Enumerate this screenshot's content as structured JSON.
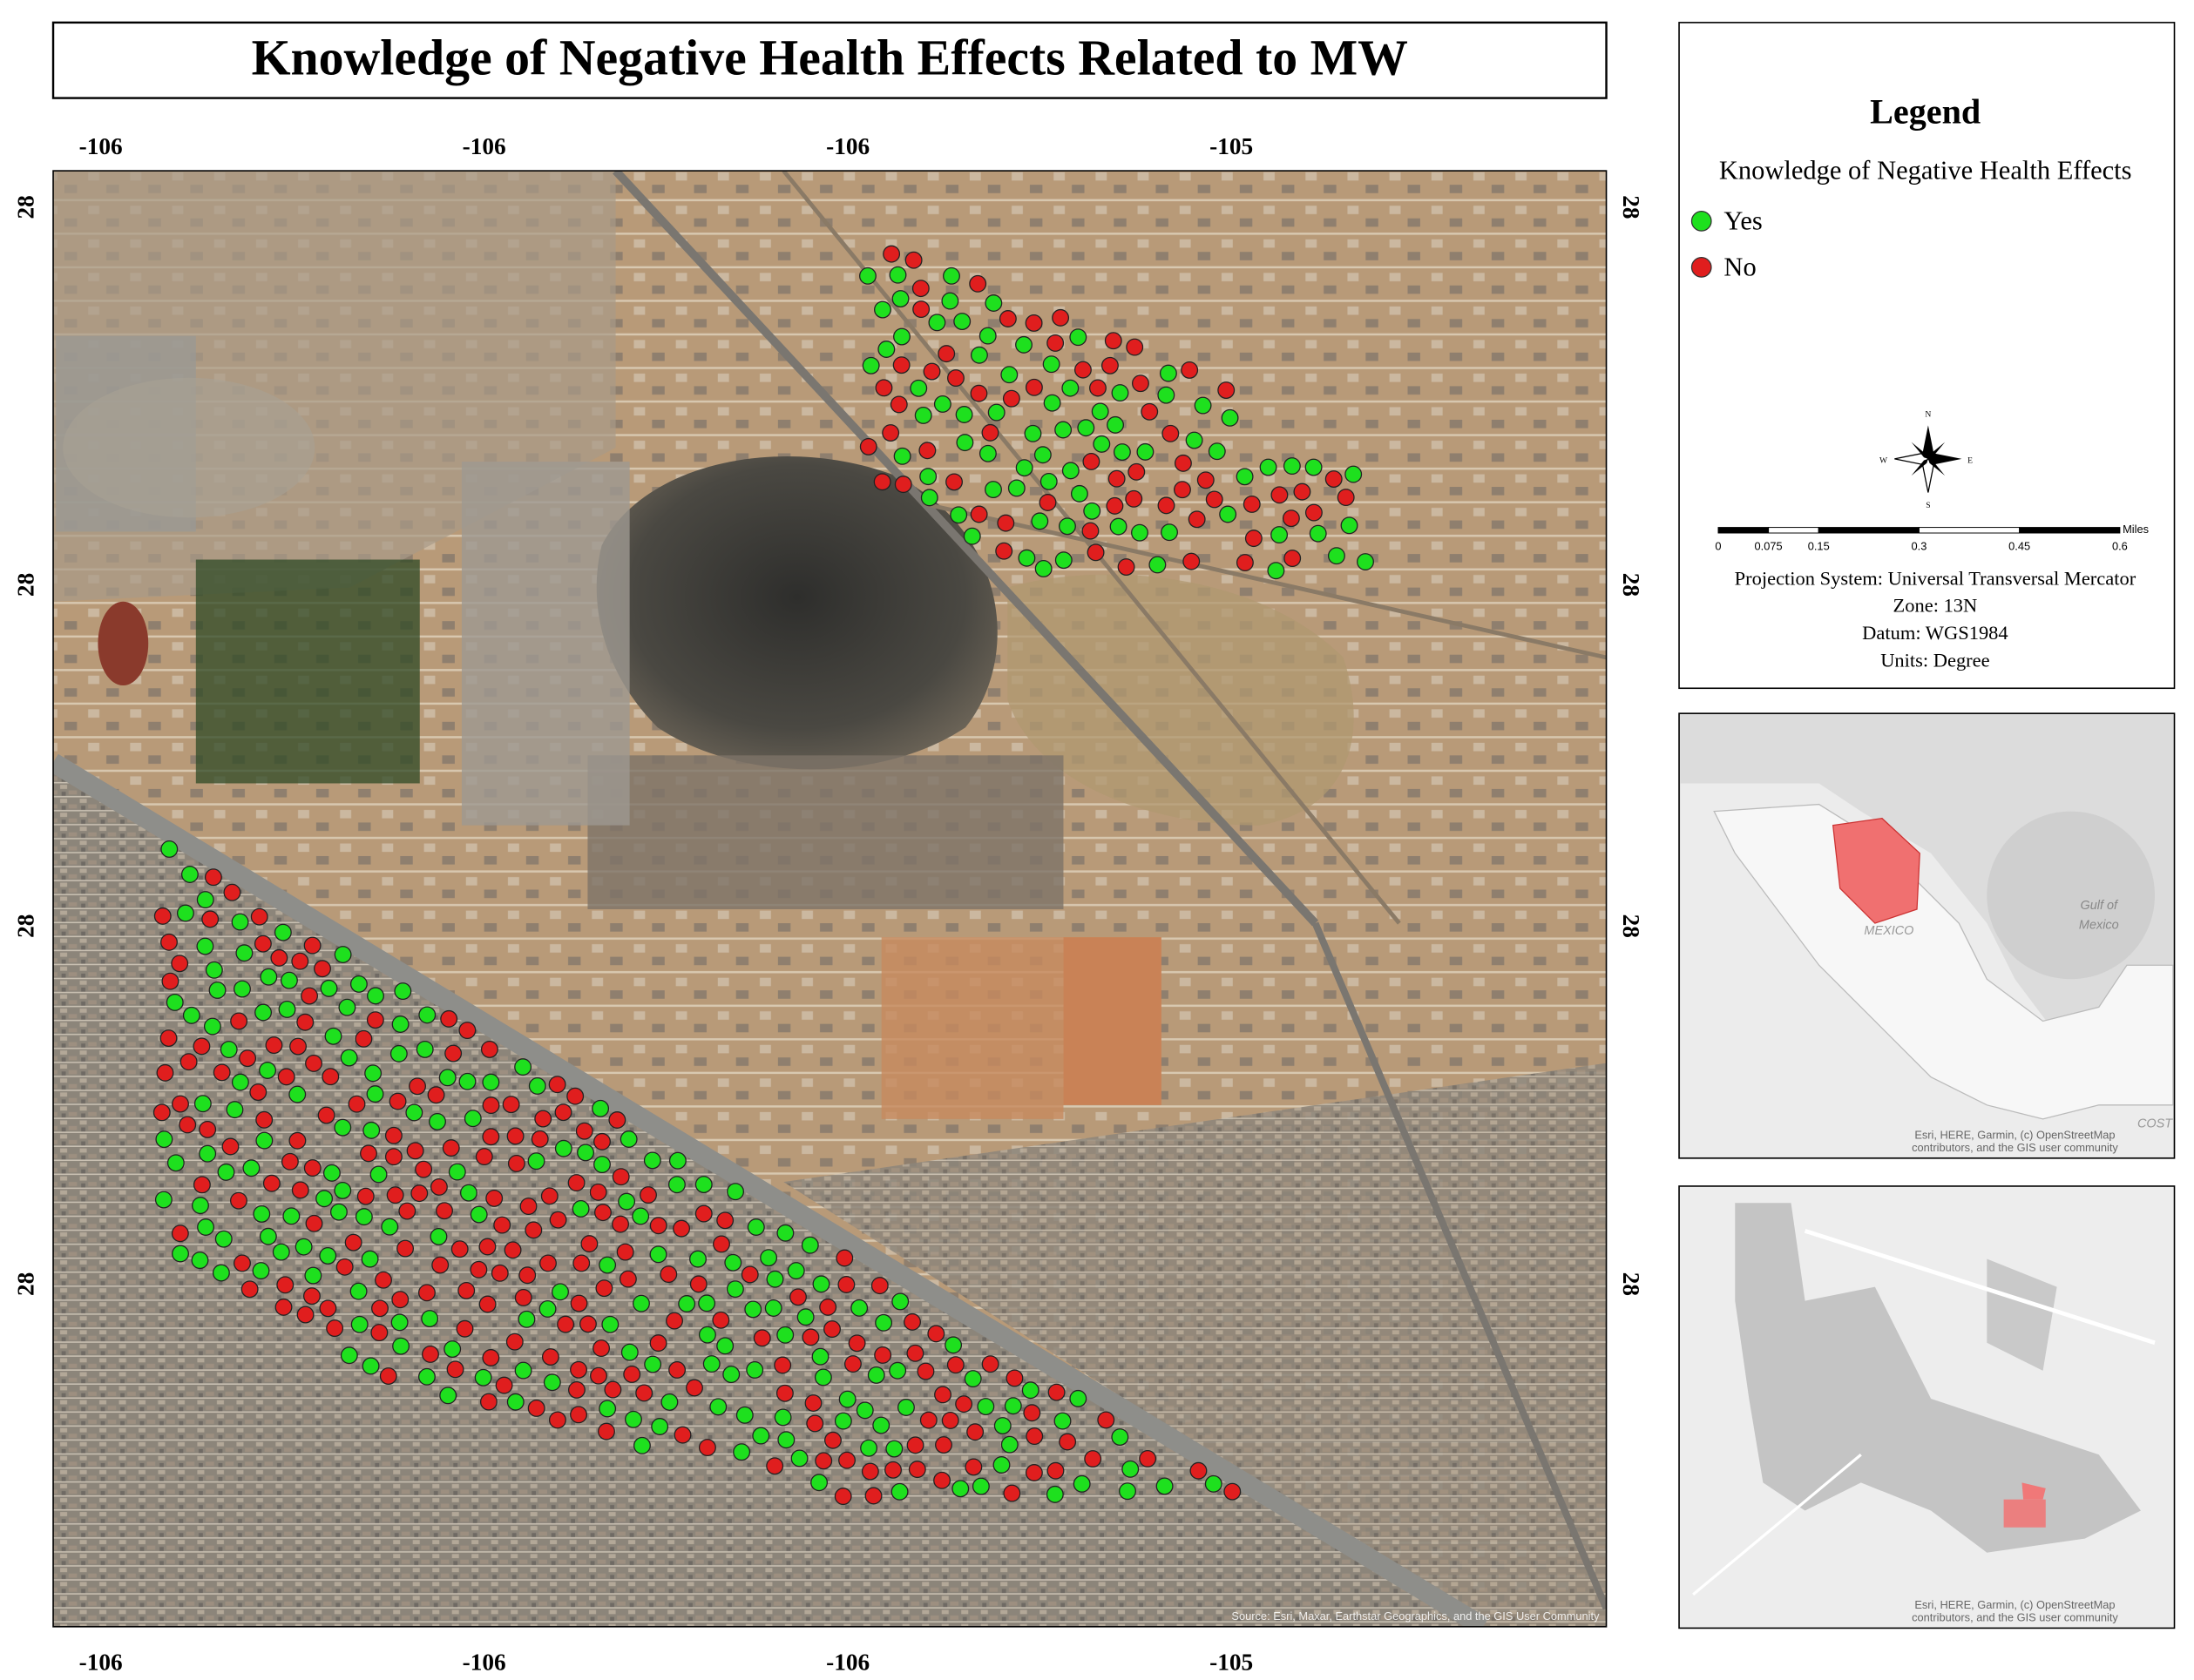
{
  "title": "Knowledge of Negative Health Effects Related to MW",
  "axes": {
    "top": [
      "-106",
      "-106",
      "-106",
      "-105"
    ],
    "bottom": [
      "-106",
      "-106",
      "-106",
      "-105"
    ],
    "left": [
      "28",
      "28",
      "28",
      "28"
    ],
    "right": [
      "28",
      "28",
      "28",
      "28"
    ]
  },
  "legend": {
    "title": "Legend",
    "subtitle": "Knowledge of Negative Health Effects",
    "items": [
      {
        "label": "Yes",
        "color": "#1ee01e"
      },
      {
        "label": "No",
        "color": "#e01e1e"
      }
    ],
    "compass": [
      "N",
      "E",
      "S",
      "W"
    ],
    "scale": {
      "labels": [
        "0",
        "0.075",
        "0.15",
        "0.3",
        "0.45",
        "0.6"
      ],
      "unit": "Miles"
    },
    "projection": [
      "Projection System: Universal Transversal Mercator",
      "Zone: 13N",
      "Datum: WGS1984",
      "Units: Degree"
    ]
  },
  "map_attribution": "Source: Esri, Maxar, Earthstar Geographics, and the GIS User Community",
  "insets": [
    {
      "labels": [
        "Gulf of",
        "Mexico",
        "MEXICO",
        "COST"
      ],
      "attribution": [
        "Esri, HERE, Garmin, (c) OpenStreetMap",
        "contributors, and the GIS user community"
      ]
    },
    {
      "attribution": [
        "Esri, HERE, Garmin, (c) OpenStreetMap",
        "contributors, and the GIS user community"
      ]
    }
  ]
}
